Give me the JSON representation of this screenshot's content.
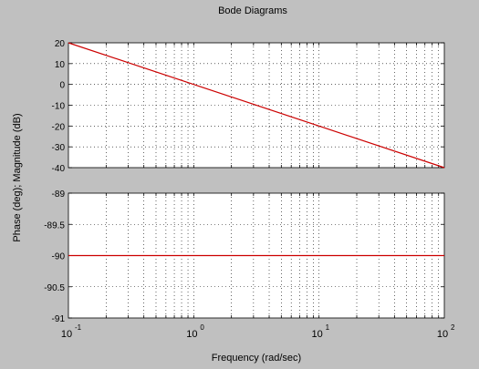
{
  "chart_data": {
    "title": "Bode Diagrams",
    "type": "line",
    "xlabel": "Frequency (rad/sec)",
    "ylabel": "Phase (deg); Magnitude (dB)",
    "xscale": "log",
    "xlim": [
      0.1,
      100
    ],
    "grid": true,
    "line_color": "#cc0000",
    "panels": [
      {
        "name": "magnitude",
        "ylim": [
          -40,
          20
        ],
        "yticks": [
          20,
          10,
          0,
          -10,
          -20,
          -30,
          -40
        ],
        "ytick_labels": [
          "20",
          "10",
          "0",
          "-10",
          "-20",
          "-30",
          "-40"
        ],
        "x": [
          0.1,
          1,
          10,
          100
        ],
        "y": [
          20,
          0,
          -20,
          -40
        ]
      },
      {
        "name": "phase",
        "ylim": [
          -91,
          -89
        ],
        "yticks": [
          -89,
          -89.5,
          -90,
          -90.5,
          -91
        ],
        "ytick_labels": [
          "-89",
          "-89.5",
          "-90",
          "-90.5",
          "-91"
        ],
        "x": [
          0.1,
          1,
          10,
          100
        ],
        "y": [
          -90,
          -90,
          -90,
          -90
        ]
      }
    ],
    "xticks": [
      {
        "base": "10",
        "exp": "-1"
      },
      {
        "base": "10",
        "exp": "0"
      },
      {
        "base": "10",
        "exp": "1"
      },
      {
        "base": "10",
        "exp": "2"
      }
    ]
  }
}
